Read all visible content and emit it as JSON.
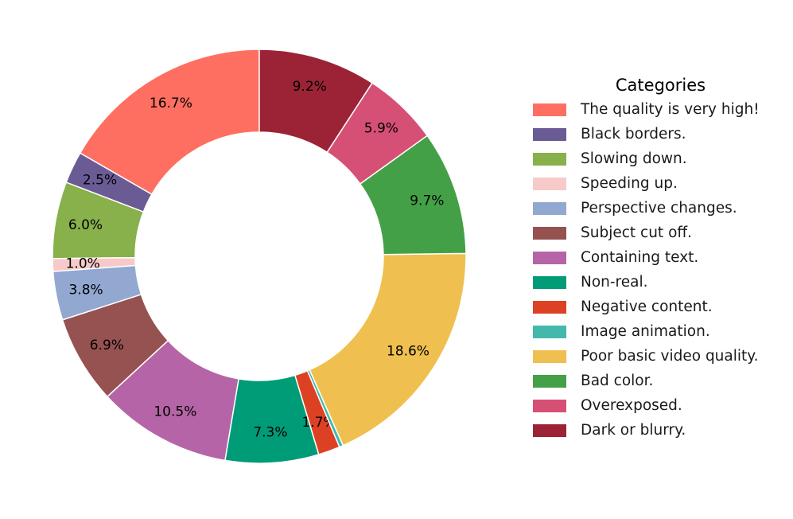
{
  "chart_data": {
    "type": "pie",
    "variant": "donut",
    "start_angle_deg": 90,
    "direction": "counterclockwise",
    "legend_title": "Categories",
    "legend_placement": "right",
    "slices": [
      {
        "label": "The quality is very high!",
        "value": 16.7,
        "display": "16.7%",
        "color": "#ff6f61"
      },
      {
        "label": "Black borders.",
        "value": 2.5,
        "display": "2.5%",
        "color": "#6b5b95"
      },
      {
        "label": "Slowing down.",
        "value": 6.0,
        "display": "6.0%",
        "color": "#88b04b"
      },
      {
        "label": "Speeding up.",
        "value": 1.0,
        "display": "1.0%",
        "color": "#f7cac9"
      },
      {
        "label": "Perspective changes.",
        "value": 3.8,
        "display": "3.8%",
        "color": "#92a8d1"
      },
      {
        "label": "Subject cut off.",
        "value": 6.9,
        "display": "6.9%",
        "color": "#955251"
      },
      {
        "label": "Containing text.",
        "value": 10.5,
        "display": "10.5%",
        "color": "#b565a7"
      },
      {
        "label": "Non-real.",
        "value": 7.3,
        "display": "7.3%",
        "color": "#009b77"
      },
      {
        "label": "Negative content.",
        "value": 1.7,
        "display": "1.7%",
        "color": "#dd4124"
      },
      {
        "label": "Image animation.",
        "value": 0.3,
        "display": "",
        "color": "#45b8ac"
      },
      {
        "label": "Poor basic video quality.",
        "value": 18.6,
        "display": "18.6%",
        "color": "#efc050"
      },
      {
        "label": "Bad color.",
        "value": 9.7,
        "display": "9.7%",
        "color": "#44a047"
      },
      {
        "label": "Overexposed.",
        "value": 5.9,
        "display": "5.9%",
        "color": "#d65076"
      },
      {
        "label": "Dark or blurry.",
        "value": 9.2,
        "display": "9.2%",
        "color": "#9b2335"
      }
    ]
  }
}
